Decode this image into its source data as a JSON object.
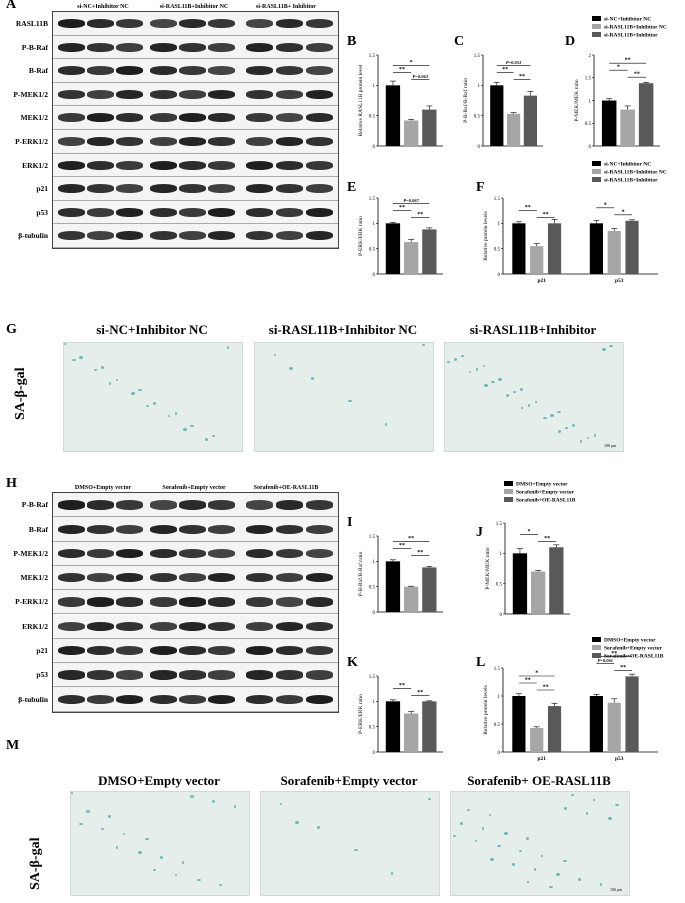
{
  "panels": {
    "A": "A",
    "B": "B",
    "C": "C",
    "D": "D",
    "E": "E",
    "F": "F",
    "G": "G",
    "H": "H",
    "I": "I",
    "J": "J",
    "K": "K",
    "L": "L",
    "M": "M"
  },
  "blot_top": {
    "groups": [
      "si-NC+Inhibitor NC",
      "si-RASL11B+Inhibitor NC",
      "si-RASL11B+ Inhibitor"
    ],
    "rows": [
      "RASL11B",
      "P-B-Raf",
      "B-Raf",
      "P-MEK1/2",
      "MEK1/2",
      "P-ERK1/2",
      "ERK1/2",
      "p21",
      "p53",
      "β-tubulin"
    ]
  },
  "blot_bottom": {
    "groups": [
      "DMSO+Empty vector",
      "Sorafenib+Empty vector",
      "Sorafenib+OE-RASL11B"
    ],
    "rows": [
      "P-B-Raf",
      "B-Raf",
      "P-MEK1/2",
      "MEK1/2",
      "P-ERK1/2",
      "ERK1/2",
      "p21",
      "p53",
      "β-tubulin"
    ]
  },
  "legend_top": [
    "si-NC+Inhibitor NC",
    "si-RASL11B+Inhibitor NC",
    "si-RASL11B+Inhibitor"
  ],
  "legend_bottom": [
    "DMSO+Empty vector",
    "Sorafenib+Empty vector",
    "Sorafenib+OE-RASL11B"
  ],
  "colors": {
    "group1": "#000000",
    "group2": "#a6a6a6",
    "group3": "#595959",
    "stain": "#3aa3a3"
  },
  "sa_top": {
    "ylabel": "SA-β-gal",
    "titles": [
      "si-NC+Inhibitor NC",
      "si-RASL11B+Inhibitor NC",
      "si-RASL11B+Inhibitor"
    ],
    "scale": "100 μm"
  },
  "sa_bottom": {
    "ylabel": "SA-β-gal",
    "titles": [
      "DMSO+Empty vector",
      "Sorafenib+Empty vector",
      "Sorafenib+ OE-RASL11B"
    ],
    "scale": "100 μm"
  },
  "chart_data": [
    {
      "id": "B",
      "type": "bar",
      "ylabel": "Relative RASL11B protein level",
      "ylim": [
        0,
        1.5
      ],
      "yticks": [
        0,
        0.5,
        1.0,
        1.5
      ],
      "categories": [
        ""
      ],
      "series": [
        {
          "values": [
            1.0
          ]
        },
        {
          "values": [
            0.42
          ]
        },
        {
          "values": [
            0.6
          ]
        }
      ],
      "errors": [
        0.07,
        0.02,
        0.06
      ],
      "sig": [
        {
          "pair": [
            1,
            2
          ],
          "text": "**"
        },
        {
          "pair": [
            1,
            3
          ],
          "text": "*"
        },
        {
          "pair": [
            2,
            3
          ],
          "text": "P=0.063"
        }
      ]
    },
    {
      "id": "C",
      "type": "bar",
      "ylabel": "P-B-Raf/B-Raf ratio",
      "ylim": [
        0,
        1.5
      ],
      "yticks": [
        0,
        0.5,
        1.0,
        1.5
      ],
      "categories": [
        ""
      ],
      "series": [
        {
          "values": [
            1.0
          ]
        },
        {
          "values": [
            0.53
          ]
        },
        {
          "values": [
            0.83
          ]
        }
      ],
      "errors": [
        0.05,
        0.02,
        0.07
      ],
      "sig": [
        {
          "pair": [
            1,
            2
          ],
          "text": "**"
        },
        {
          "pair": [
            1,
            3
          ],
          "text": "P=0.053"
        },
        {
          "pair": [
            2,
            3
          ],
          "text": "**"
        }
      ]
    },
    {
      "id": "D",
      "type": "bar",
      "ylabel": "P-MEK/MEK ratio",
      "ylim": [
        0,
        2.0
      ],
      "yticks": [
        0,
        0.5,
        1.0,
        1.5,
        2.0
      ],
      "categories": [
        ""
      ],
      "series": [
        {
          "values": [
            1.0
          ]
        },
        {
          "values": [
            0.8
          ]
        },
        {
          "values": [
            1.38
          ]
        }
      ],
      "errors": [
        0.04,
        0.08,
        0.02
      ],
      "sig": [
        {
          "pair": [
            1,
            2
          ],
          "text": "*"
        },
        {
          "pair": [
            1,
            3
          ],
          "text": "**"
        },
        {
          "pair": [
            2,
            3
          ],
          "text": "**"
        }
      ]
    },
    {
      "id": "E",
      "type": "bar",
      "ylabel": "P-ERK/ERK ratio",
      "ylim": [
        0,
        1.5
      ],
      "yticks": [
        0,
        0.5,
        1.0,
        1.5
      ],
      "categories": [
        ""
      ],
      "series": [
        {
          "values": [
            1.0
          ]
        },
        {
          "values": [
            0.63
          ]
        },
        {
          "values": [
            0.88
          ]
        }
      ],
      "errors": [
        0.02,
        0.05,
        0.03
      ],
      "sig": [
        {
          "pair": [
            1,
            2
          ],
          "text": "**"
        },
        {
          "pair": [
            1,
            3
          ],
          "text": "P=0.067"
        },
        {
          "pair": [
            2,
            3
          ],
          "text": "**"
        }
      ]
    },
    {
      "id": "F",
      "type": "bar",
      "ylabel": "Relative protein levels",
      "ylim": [
        0,
        1.5
      ],
      "yticks": [
        0,
        0.5,
        1.0,
        1.5
      ],
      "categories": [
        "p21",
        "p53"
      ],
      "series": [
        {
          "values": [
            1.0,
            1.0
          ]
        },
        {
          "values": [
            0.55,
            0.85
          ]
        },
        {
          "values": [
            1.0,
            1.05
          ]
        }
      ],
      "errors": [
        [
          0.03,
          0.06
        ],
        [
          0.05,
          0.05
        ],
        [
          0.08,
          0.02
        ]
      ],
      "sig": [
        {
          "cat": 0,
          "pair": [
            1,
            2
          ],
          "text": "**"
        },
        {
          "cat": 0,
          "pair": [
            2,
            3
          ],
          "text": "**"
        },
        {
          "cat": 1,
          "pair": [
            1,
            2
          ],
          "text": "*"
        },
        {
          "cat": 1,
          "pair": [
            2,
            3
          ],
          "text": "*"
        }
      ]
    },
    {
      "id": "I",
      "type": "bar",
      "ylabel": "P-B-Raf/B-Raf ratio",
      "ylim": [
        0,
        1.5
      ],
      "yticks": [
        0,
        0.5,
        1.0,
        1.5
      ],
      "categories": [
        ""
      ],
      "series": [
        {
          "values": [
            1.0
          ]
        },
        {
          "values": [
            0.5
          ]
        },
        {
          "values": [
            0.88
          ]
        }
      ],
      "errors": [
        0.03,
        0.01,
        0.02
      ],
      "sig": [
        {
          "pair": [
            1,
            2
          ],
          "text": "**"
        },
        {
          "pair": [
            1,
            3
          ],
          "text": "**"
        },
        {
          "pair": [
            2,
            3
          ],
          "text": "**"
        }
      ]
    },
    {
      "id": "J",
      "type": "bar",
      "ylabel": "P-MEK/MEK ratio",
      "ylim": [
        0,
        1.5
      ],
      "yticks": [
        0,
        0.5,
        1.0,
        1.5
      ],
      "categories": [
        ""
      ],
      "series": [
        {
          "values": [
            1.0
          ]
        },
        {
          "values": [
            0.7
          ]
        },
        {
          "values": [
            1.1
          ]
        }
      ],
      "errors": [
        0.08,
        0.02,
        0.04
      ],
      "sig": [
        {
          "pair": [
            1,
            2
          ],
          "text": "*"
        },
        {
          "pair": [
            2,
            3
          ],
          "text": "**"
        }
      ]
    },
    {
      "id": "K",
      "type": "bar",
      "ylabel": "P-ERK/ERK ratio",
      "ylim": [
        0,
        1.5
      ],
      "yticks": [
        0,
        0.5,
        1.0,
        1.5
      ],
      "categories": [
        ""
      ],
      "series": [
        {
          "values": [
            1.0
          ]
        },
        {
          "values": [
            0.76
          ]
        },
        {
          "values": [
            1.0
          ]
        }
      ],
      "errors": [
        0.03,
        0.04,
        0.01
      ],
      "sig": [
        {
          "pair": [
            1,
            2
          ],
          "text": "**"
        },
        {
          "pair": [
            2,
            3
          ],
          "text": "**"
        }
      ]
    },
    {
      "id": "L",
      "type": "bar",
      "ylabel": "Relative protein levels",
      "ylim": [
        0,
        1.5
      ],
      "yticks": [
        0,
        0.5,
        1.0,
        1.5
      ],
      "categories": [
        "p21",
        "p53"
      ],
      "series": [
        {
          "values": [
            1.0,
            1.0
          ]
        },
        {
          "values": [
            0.43,
            0.88
          ]
        },
        {
          "values": [
            0.82,
            1.35
          ]
        }
      ],
      "errors": [
        [
          0.04,
          0.03
        ],
        [
          0.02,
          0.07
        ],
        [
          0.05,
          0.04
        ]
      ],
      "sig": [
        {
          "cat": 0,
          "pair": [
            1,
            2
          ],
          "text": "**"
        },
        {
          "cat": 0,
          "pair": [
            1,
            3
          ],
          "text": "*"
        },
        {
          "cat": 0,
          "pair": [
            2,
            3
          ],
          "text": "**"
        },
        {
          "cat": 1,
          "pair": [
            1,
            2
          ],
          "text": "P=0.061"
        },
        {
          "cat": 1,
          "pair": [
            1,
            3
          ],
          "text": "**"
        },
        {
          "cat": 1,
          "pair": [
            2,
            3
          ],
          "text": "**"
        }
      ]
    }
  ]
}
